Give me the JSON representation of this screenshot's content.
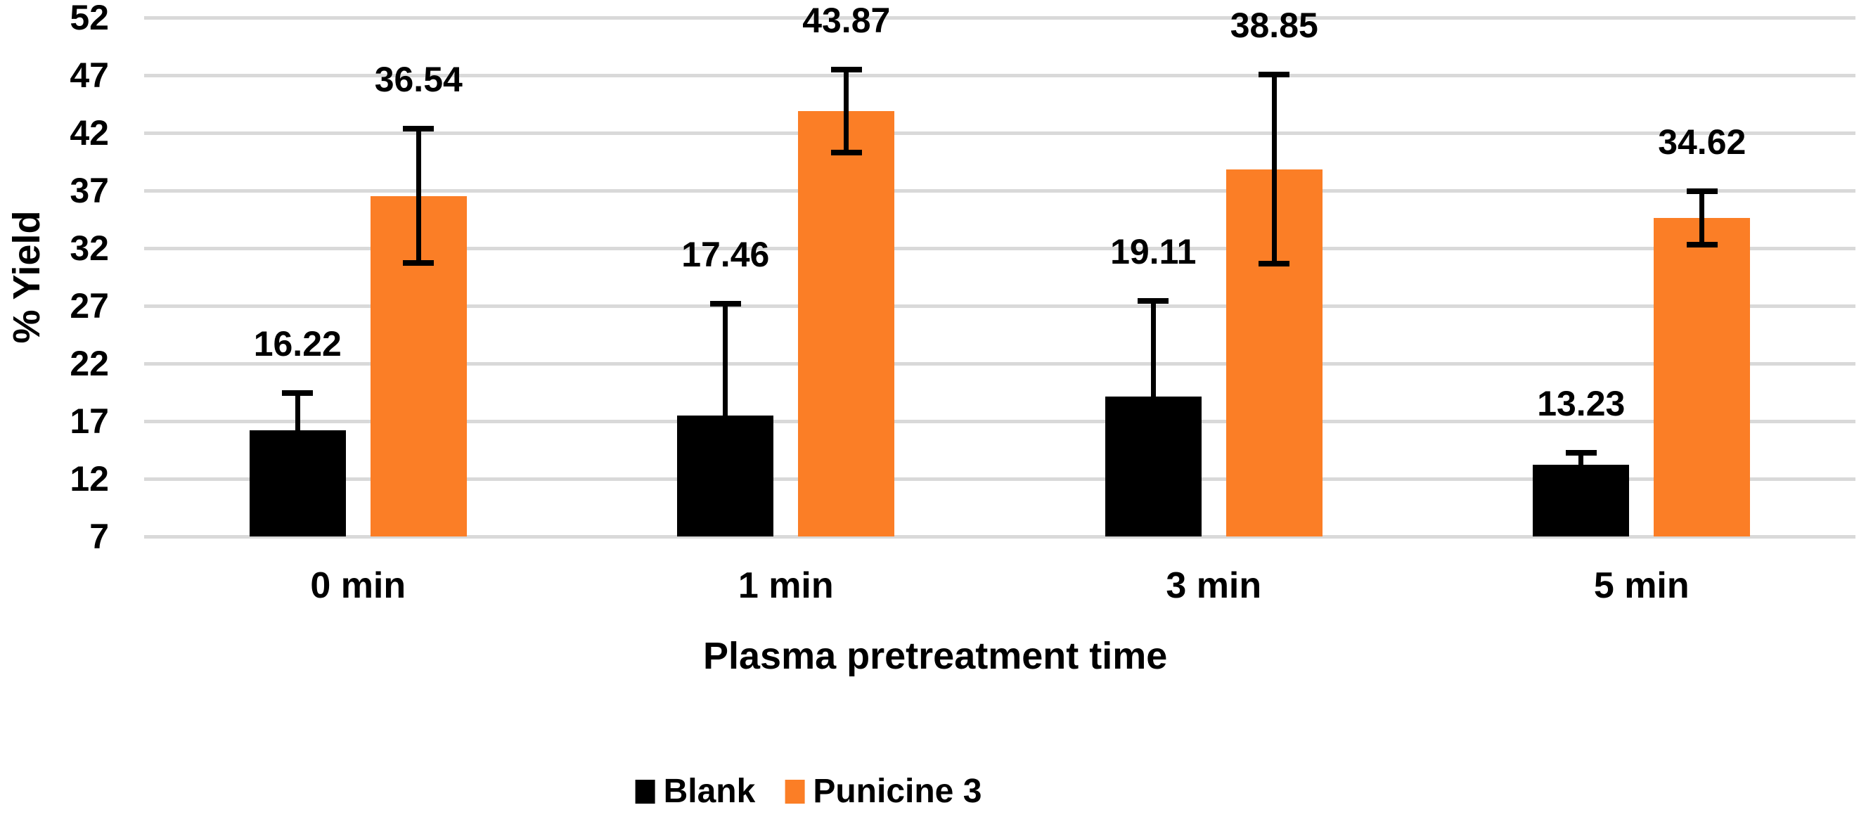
{
  "chart_data": {
    "type": "bar",
    "title": "",
    "xlabel": "Plasma pretreatment time",
    "ylabel": "% Yield",
    "categories": [
      "0 min",
      "1 min",
      "3 min",
      "5 min"
    ],
    "series": [
      {
        "name": "Blank",
        "color": "#000000",
        "values": [
          16.22,
          17.46,
          19.11,
          13.23
        ],
        "errors": [
          3.2,
          9.7,
          8.3,
          1.0
        ],
        "data_labels": [
          "16.22",
          "17.46",
          "19.11",
          "13.23"
        ]
      },
      {
        "name": "Punicine 3",
        "color": "#FB7E26",
        "values": [
          36.54,
          43.87,
          38.85,
          34.62
        ],
        "errors": [
          5.8,
          3.6,
          8.2,
          2.3
        ],
        "data_labels": [
          "36.54",
          "43.87",
          "38.85",
          "34.62"
        ]
      }
    ],
    "y_ticks": [
      7,
      12,
      17,
      22,
      27,
      32,
      37,
      42,
      47,
      52
    ],
    "ylim": [
      7,
      52
    ],
    "grid": true,
    "gridline_color": "#D9D9D9",
    "error_bar_color": "#000000",
    "legend_position": "bottom",
    "legend_entries": [
      "Blank",
      "Punicine 3"
    ]
  }
}
